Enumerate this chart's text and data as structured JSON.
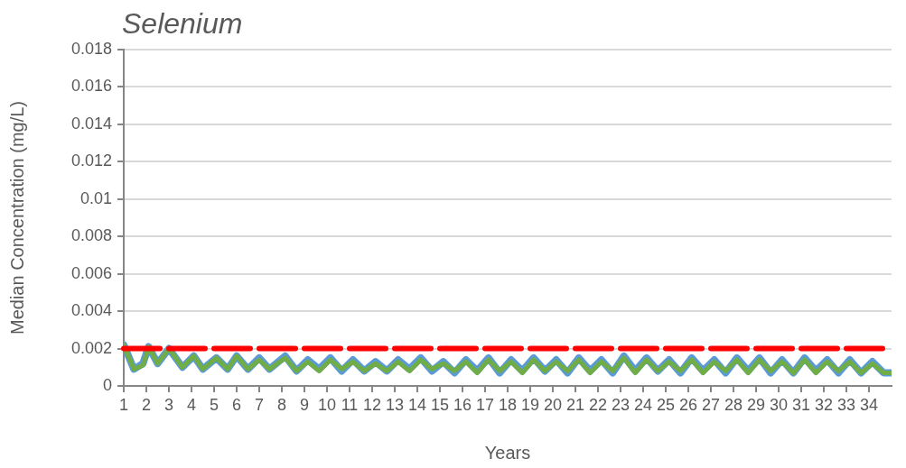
{
  "chart_data": {
    "type": "line",
    "title": "Selenium",
    "xlabel": "Years",
    "ylabel": "Median Concentration (mg/L)",
    "x": [
      1,
      1.45,
      1.85,
      2.1,
      2.5,
      3.0,
      3.6,
      4.1,
      4.5,
      5.1,
      5.6,
      6.0,
      6.5,
      7.0,
      7.45,
      8.15,
      8.65,
      9.15,
      9.65,
      10.15,
      10.65,
      11.15,
      11.65,
      12.15,
      12.65,
      13.15,
      13.65,
      14.15,
      14.65,
      15.15,
      15.65,
      16.15,
      16.65,
      17.15,
      17.65,
      18.15,
      18.65,
      19.15,
      19.65,
      20.15,
      20.65,
      21.15,
      21.65,
      22.15,
      22.65,
      23.15,
      23.65,
      24.15,
      24.65,
      25.15,
      25.65,
      26.15,
      26.65,
      27.15,
      27.65,
      28.15,
      28.65,
      29.15,
      29.65,
      30.15,
      30.65,
      31.15,
      31.65,
      32.15,
      32.65,
      33.15,
      33.65,
      34.15,
      34.65,
      35
    ],
    "xlim": [
      1,
      35
    ],
    "xticks": [
      1,
      2,
      3,
      4,
      5,
      6,
      7,
      8,
      9,
      10,
      11,
      12,
      13,
      14,
      15,
      16,
      17,
      18,
      19,
      20,
      21,
      22,
      23,
      24,
      25,
      26,
      27,
      28,
      29,
      30,
      31,
      32,
      33,
      34
    ],
    "ylim": [
      0,
      0.018
    ],
    "yticks": [
      0,
      0.002,
      0.004,
      0.006,
      0.008,
      0.01,
      0.012,
      0.014,
      0.016,
      0.018
    ],
    "grid": "y",
    "series": [
      {
        "color": "#5b9bd5",
        "values": [
          0.0022,
          0.0009,
          0.0012,
          0.0021,
          0.0012,
          0.002,
          0.001,
          0.0016,
          0.0009,
          0.0015,
          0.0009,
          0.0016,
          0.0009,
          0.0015,
          0.0009,
          0.0016,
          0.0008,
          0.0014,
          0.0009,
          0.0015,
          0.0008,
          0.0014,
          0.0008,
          0.0013,
          0.0008,
          0.0014,
          0.0009,
          0.0015,
          0.0008,
          0.0013,
          0.0007,
          0.0014,
          0.0008,
          0.0015,
          0.0007,
          0.0014,
          0.0008,
          0.0015,
          0.0008,
          0.0014,
          0.0007,
          0.0015,
          0.0008,
          0.0014,
          0.0007,
          0.0016,
          0.0008,
          0.0015,
          0.0008,
          0.0014,
          0.0007,
          0.0015,
          0.0008,
          0.0014,
          0.0007,
          0.0015,
          0.0008,
          0.0015,
          0.0007,
          0.0014,
          0.0007,
          0.0015,
          0.0008,
          0.0014,
          0.0007,
          0.0014,
          0.0007,
          0.0013,
          0.0007,
          0.0007
        ]
      },
      {
        "color": "#70ad47",
        "values": [
          0.0022,
          0.0009,
          0.0011,
          0.0021,
          0.0012,
          0.002,
          0.001,
          0.0016,
          0.0009,
          0.0015,
          0.0009,
          0.0016,
          0.0009,
          0.0014,
          0.0009,
          0.0015,
          0.0008,
          0.0013,
          0.0008,
          0.0014,
          0.0009,
          0.0013,
          0.0008,
          0.0012,
          0.0008,
          0.0013,
          0.0008,
          0.0014,
          0.0009,
          0.0012,
          0.0008,
          0.0013,
          0.0007,
          0.0014,
          0.0008,
          0.0013,
          0.0007,
          0.0014,
          0.0008,
          0.0013,
          0.0008,
          0.0014,
          0.0007,
          0.0013,
          0.0008,
          0.0015,
          0.0007,
          0.0014,
          0.0008,
          0.0013,
          0.0008,
          0.0014,
          0.0007,
          0.0013,
          0.0008,
          0.0014,
          0.0007,
          0.0014,
          0.0008,
          0.0013,
          0.0007,
          0.0014,
          0.0007,
          0.0013,
          0.0008,
          0.0013,
          0.0007,
          0.0012,
          0.0007,
          0.0007
        ]
      }
    ],
    "ref_lines": [
      {
        "axis": "y",
        "value": 0.002,
        "color": "#ff0000",
        "line_style": "dashed"
      }
    ]
  }
}
